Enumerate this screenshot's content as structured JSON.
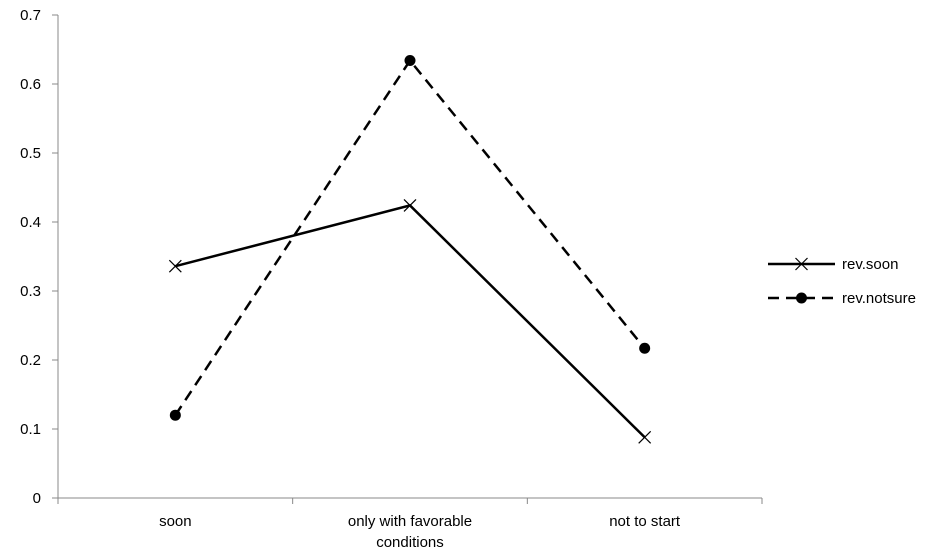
{
  "chart_data": {
    "type": "line",
    "categories": [
      "soon",
      "only with favorable conditions",
      "not to start"
    ],
    "category_label_lines": [
      [
        "soon"
      ],
      [
        "only with favorable",
        "conditions"
      ],
      [
        "not to start"
      ]
    ],
    "series": [
      {
        "name": "rev.soon",
        "values": [
          0.336,
          0.424,
          0.088
        ],
        "line_style": "solid",
        "marker": "x",
        "color": "#000000"
      },
      {
        "name": "rev.notsure",
        "values": [
          0.12,
          0.634,
          0.217
        ],
        "line_style": "dashed",
        "marker": "circle",
        "color": "#000000"
      }
    ],
    "yticks": [
      "0",
      "0.1",
      "0.2",
      "0.3",
      "0.4",
      "0.5",
      "0.6",
      "0.7"
    ],
    "ylim": [
      0,
      0.7
    ],
    "grid": false,
    "legend_position": "right",
    "title": "",
    "xlabel": "",
    "ylabel": ""
  }
}
